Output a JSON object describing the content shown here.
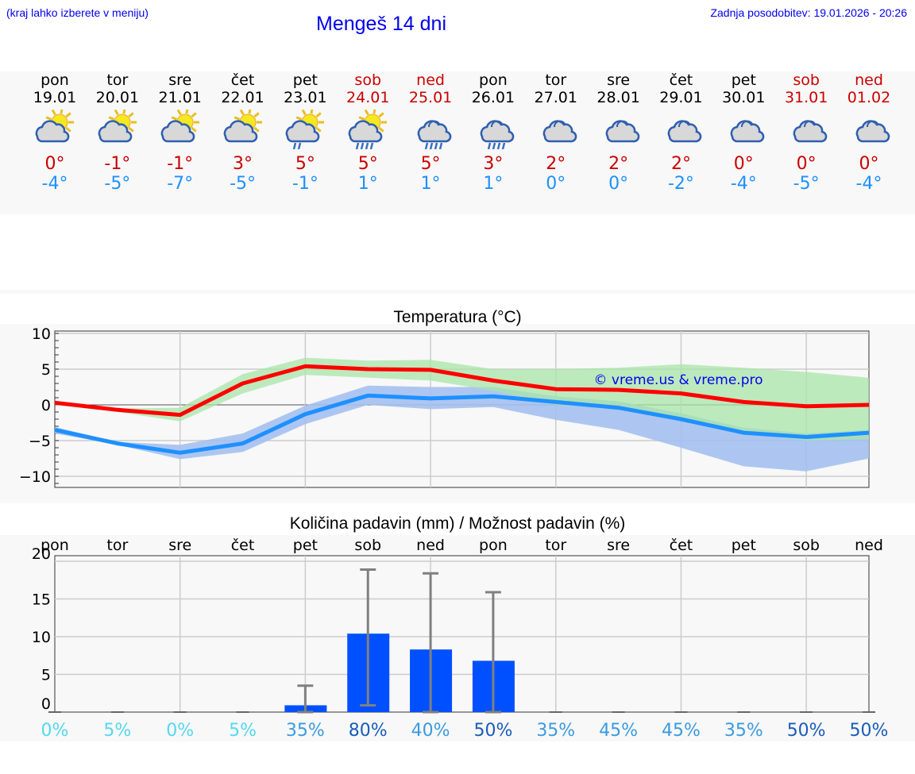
{
  "header": {
    "hint": "(kraj lahko izberete v meniju)",
    "title": "Mengeš 14 dni",
    "updated": "Zadnja posodobitev: 19.01.2026 - 20:26"
  },
  "days": [
    {
      "name": "pon",
      "date": "19.01",
      "weekend": false,
      "icon": "partly-cloudy",
      "max": "0°",
      "min": "-4°"
    },
    {
      "name": "tor",
      "date": "20.01",
      "weekend": false,
      "icon": "partly-cloudy",
      "max": "-1°",
      "min": "-5°"
    },
    {
      "name": "sre",
      "date": "21.01",
      "weekend": false,
      "icon": "partly-cloudy",
      "max": "-1°",
      "min": "-7°"
    },
    {
      "name": "čet",
      "date": "22.01",
      "weekend": false,
      "icon": "partly-cloudy",
      "max": "3°",
      "min": "-5°"
    },
    {
      "name": "pet",
      "date": "23.01",
      "weekend": false,
      "icon": "partly-cloudy-light-rain",
      "max": "5°",
      "min": "-1°"
    },
    {
      "name": "sob",
      "date": "24.01",
      "weekend": true,
      "icon": "partly-cloudy-rain",
      "max": "5°",
      "min": "1°"
    },
    {
      "name": "ned",
      "date": "25.01",
      "weekend": true,
      "icon": "cloudy-rain",
      "max": "5°",
      "min": "1°"
    },
    {
      "name": "pon",
      "date": "26.01",
      "weekend": false,
      "icon": "cloudy-rain",
      "max": "3°",
      "min": "1°"
    },
    {
      "name": "tor",
      "date": "27.01",
      "weekend": false,
      "icon": "cloudy",
      "max": "2°",
      "min": "0°"
    },
    {
      "name": "sre",
      "date": "28.01",
      "weekend": false,
      "icon": "cloudy",
      "max": "2°",
      "min": "0°"
    },
    {
      "name": "čet",
      "date": "29.01",
      "weekend": false,
      "icon": "cloudy",
      "max": "2°",
      "min": "-2°"
    },
    {
      "name": "pet",
      "date": "30.01",
      "weekend": false,
      "icon": "cloudy",
      "max": "0°",
      "min": "-4°"
    },
    {
      "name": "sob",
      "date": "31.01",
      "weekend": true,
      "icon": "cloudy",
      "max": "0°",
      "min": "-5°"
    },
    {
      "name": "ned",
      "date": "01.02",
      "weekend": true,
      "icon": "cloudy",
      "max": "0°",
      "min": "-4°"
    }
  ],
  "colors": {
    "max": "#ff0000",
    "min": "#1e90ff",
    "maxBand": "#a8e6a8",
    "minBand": "#a4c0f0",
    "bar": "#0050ff",
    "err": "#808080"
  },
  "chart_data": [
    {
      "type": "line",
      "title": "Temperatura (°C)",
      "ylim": [
        -11.5,
        10.5
      ],
      "yticks": [
        10,
        5,
        0,
        -5,
        -10
      ],
      "ytick_labels": [
        "10",
        "5",
        "0",
        "−5",
        "−10"
      ],
      "annotation": "© vreme.us & vreme.pro",
      "x": [
        0,
        1,
        2,
        3,
        4,
        5,
        6,
        7,
        8,
        9,
        10,
        11,
        12,
        13
      ],
      "series": [
        {
          "name": "max",
          "values": [
            0.3,
            -0.7,
            -1.4,
            3.0,
            5.4,
            5.0,
            4.9,
            3.4,
            2.2,
            2.1,
            1.6,
            0.4,
            -0.2,
            0.0
          ],
          "band_high": [
            0.4,
            -0.5,
            -0.4,
            4.3,
            6.6,
            6.2,
            6.3,
            5.0,
            5.0,
            5.2,
            5.7,
            5.2,
            4.6,
            3.8
          ],
          "band_low": [
            0.0,
            -1.0,
            -2.3,
            1.6,
            4.2,
            3.8,
            3.4,
            2.0,
            0.0,
            -0.5,
            -2.1,
            -4.0,
            -5.0,
            -4.8
          ]
        },
        {
          "name": "min",
          "values": [
            -3.5,
            -5.4,
            -6.7,
            -5.4,
            -1.3,
            1.3,
            0.9,
            1.2,
            0.4,
            -0.4,
            -2.0,
            -3.9,
            -4.5,
            -3.9
          ],
          "band_high": [
            -3.1,
            -5.2,
            -5.6,
            -4.0,
            -0.1,
            2.7,
            2.5,
            2.5,
            1.2,
            0.5,
            -1.2,
            -3.2,
            -4.0,
            -3.5
          ],
          "band_low": [
            -4.0,
            -5.6,
            -7.6,
            -6.6,
            -2.7,
            0.0,
            -0.6,
            -0.3,
            -2.1,
            -3.5,
            -6.0,
            -8.6,
            -9.3,
            -7.5
          ]
        }
      ]
    },
    {
      "type": "bar",
      "title": "Količina padavin (mm) / Možnost padavin (%)",
      "ylim": [
        0,
        20
      ],
      "yticks": [
        20,
        15,
        10,
        5,
        0
      ],
      "ytick_labels": [
        "20",
        "15",
        "10",
        "5",
        "0"
      ],
      "categories": [
        "pon",
        "tor",
        "sre",
        "čet",
        "pet",
        "sob",
        "ned",
        "pon",
        "tor",
        "sre",
        "čet",
        "pet",
        "sob",
        "ned"
      ],
      "values": [
        0,
        0,
        0,
        0,
        0.9,
        10.4,
        8.3,
        6.8,
        0,
        0,
        0,
        0,
        0,
        0
      ],
      "err_low": [
        0,
        0,
        0,
        0,
        0,
        0.9,
        0,
        0,
        0,
        0,
        0,
        0,
        0,
        0
      ],
      "err_high": [
        0,
        0,
        0,
        0,
        3.5,
        18.9,
        18.4,
        15.9,
        0,
        0,
        0,
        0,
        0,
        0
      ],
      "probability": [
        "0%",
        "5%",
        "0%",
        "5%",
        "35%",
        "80%",
        "40%",
        "50%",
        "35%",
        "45%",
        "45%",
        "35%",
        "50%",
        "50%"
      ],
      "probability_colors": [
        "#55d8ee",
        "#55d8ee",
        "#55d8ee",
        "#55d8ee",
        "#3a9be0",
        "#1a5cb8",
        "#3a9be0",
        "#1a5cb8",
        "#3a9be0",
        "#3a9be0",
        "#3a9be0",
        "#3a9be0",
        "#1a5cb8",
        "#1a5cb8"
      ]
    }
  ]
}
